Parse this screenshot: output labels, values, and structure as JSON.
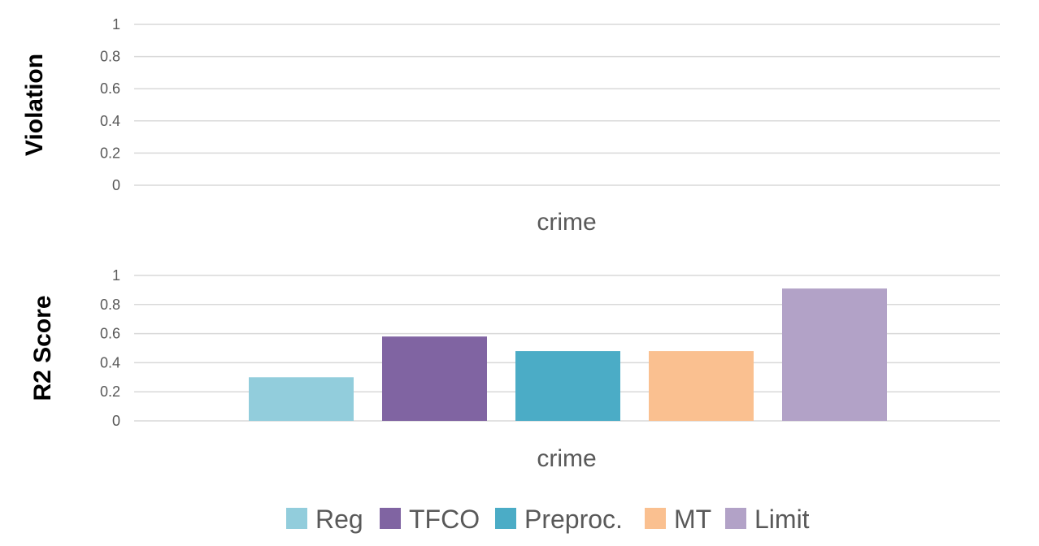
{
  "chart_data": [
    {
      "type": "bar",
      "ylabel": "Violation",
      "xlabel": "",
      "categories": [
        "crime"
      ],
      "ylim": [
        0,
        1
      ],
      "yticks": [
        "0",
        "0.2",
        "0.4",
        "0.6",
        "0.8",
        "1"
      ],
      "grid": true,
      "series": [
        {
          "name": "Reg",
          "values": [
            0
          ],
          "color": "#92cddc"
        },
        {
          "name": "TFCO",
          "values": [
            0
          ],
          "color": "#8064a2"
        },
        {
          "name": "Preproc.",
          "values": [
            0
          ],
          "color": "#4bacc6"
        },
        {
          "name": "MT",
          "values": [
            0
          ],
          "color": "#fac090"
        },
        {
          "name": "Limit",
          "values": [
            0
          ],
          "color": "#b2a2c7"
        }
      ]
    },
    {
      "type": "bar",
      "ylabel": "R2 Score",
      "xlabel": "",
      "categories": [
        "crime"
      ],
      "ylim": [
        0,
        1
      ],
      "yticks": [
        "0",
        "0.2",
        "0.4",
        "0.6",
        "0.8",
        "1"
      ],
      "grid": true,
      "series": [
        {
          "name": "Reg",
          "values": [
            0.3
          ],
          "color": "#92cddc"
        },
        {
          "name": "TFCO",
          "values": [
            0.58
          ],
          "color": "#8064a2"
        },
        {
          "name": "Preproc.",
          "values": [
            0.48
          ],
          "color": "#4bacc6"
        },
        {
          "name": "MT",
          "values": [
            0.48
          ],
          "color": "#fac090"
        },
        {
          "name": "Limit",
          "values": [
            0.91
          ],
          "color": "#b2a2c7"
        }
      ]
    }
  ],
  "legend": {
    "position": "bottom",
    "items": [
      {
        "label": "Reg",
        "color": "#92cddc"
      },
      {
        "label": "TFCO",
        "color": "#8064a2"
      },
      {
        "label": "Preproc.",
        "color": "#4bacc6"
      },
      {
        "label": "MT",
        "color": "#fac090"
      },
      {
        "label": "Limit",
        "color": "#b2a2c7"
      }
    ]
  }
}
